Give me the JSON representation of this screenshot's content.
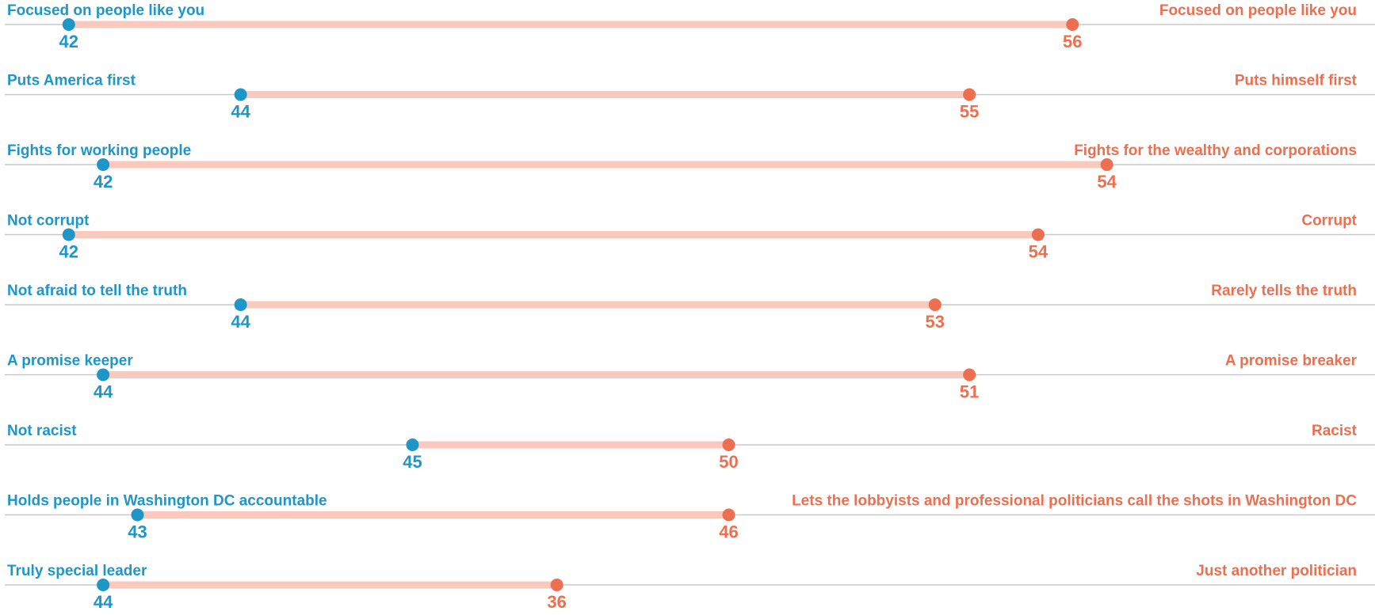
{
  "chart_data": {
    "type": "dumbbell",
    "colors": {
      "left": "#1e96c8",
      "right": "#ec6f50",
      "connector": "#f8c9bc",
      "axis_line": "#c8c8c8"
    },
    "rows": [
      {
        "left_label": "Focused on people like you",
        "right_label": "Focused on people like you",
        "left_value": 42,
        "right_value": 56,
        "left_position": 0.05,
        "right_position": 0.78
      },
      {
        "left_label": "Puts America first",
        "right_label": "Puts himself first",
        "left_value": 44,
        "right_value": 55,
        "left_position": 0.175,
        "right_position": 0.705
      },
      {
        "left_label": "Fights for working people",
        "right_label": "Fights for the wealthy and corporations",
        "left_value": 42,
        "right_value": 54,
        "left_position": 0.075,
        "right_position": 0.805
      },
      {
        "left_label": "Not corrupt",
        "right_label": "Corrupt",
        "left_value": 42,
        "right_value": 54,
        "left_position": 0.05,
        "right_position": 0.755
      },
      {
        "left_label": "Not afraid to tell the truth",
        "right_label": "Rarely tells the truth",
        "left_value": 44,
        "right_value": 53,
        "left_position": 0.175,
        "right_position": 0.68
      },
      {
        "left_label": "A promise keeper",
        "right_label": "A promise breaker",
        "left_value": 44,
        "right_value": 51,
        "left_position": 0.075,
        "right_position": 0.705
      },
      {
        "left_label": "Not racist",
        "right_label": "Racist",
        "left_value": 45,
        "right_value": 50,
        "left_position": 0.3,
        "right_position": 0.53
      },
      {
        "left_label": "Holds people in Washington DC accountable",
        "right_label": "Lets the lobbyists and professional politicians call the shots in Washington DC",
        "left_value": 43,
        "right_value": 46,
        "left_position": 0.1,
        "right_position": 0.53
      },
      {
        "left_label": "Truly special leader",
        "right_label": "Just another politician",
        "left_value": 44,
        "right_value": 36,
        "left_position": 0.075,
        "right_position": 0.405
      }
    ]
  }
}
